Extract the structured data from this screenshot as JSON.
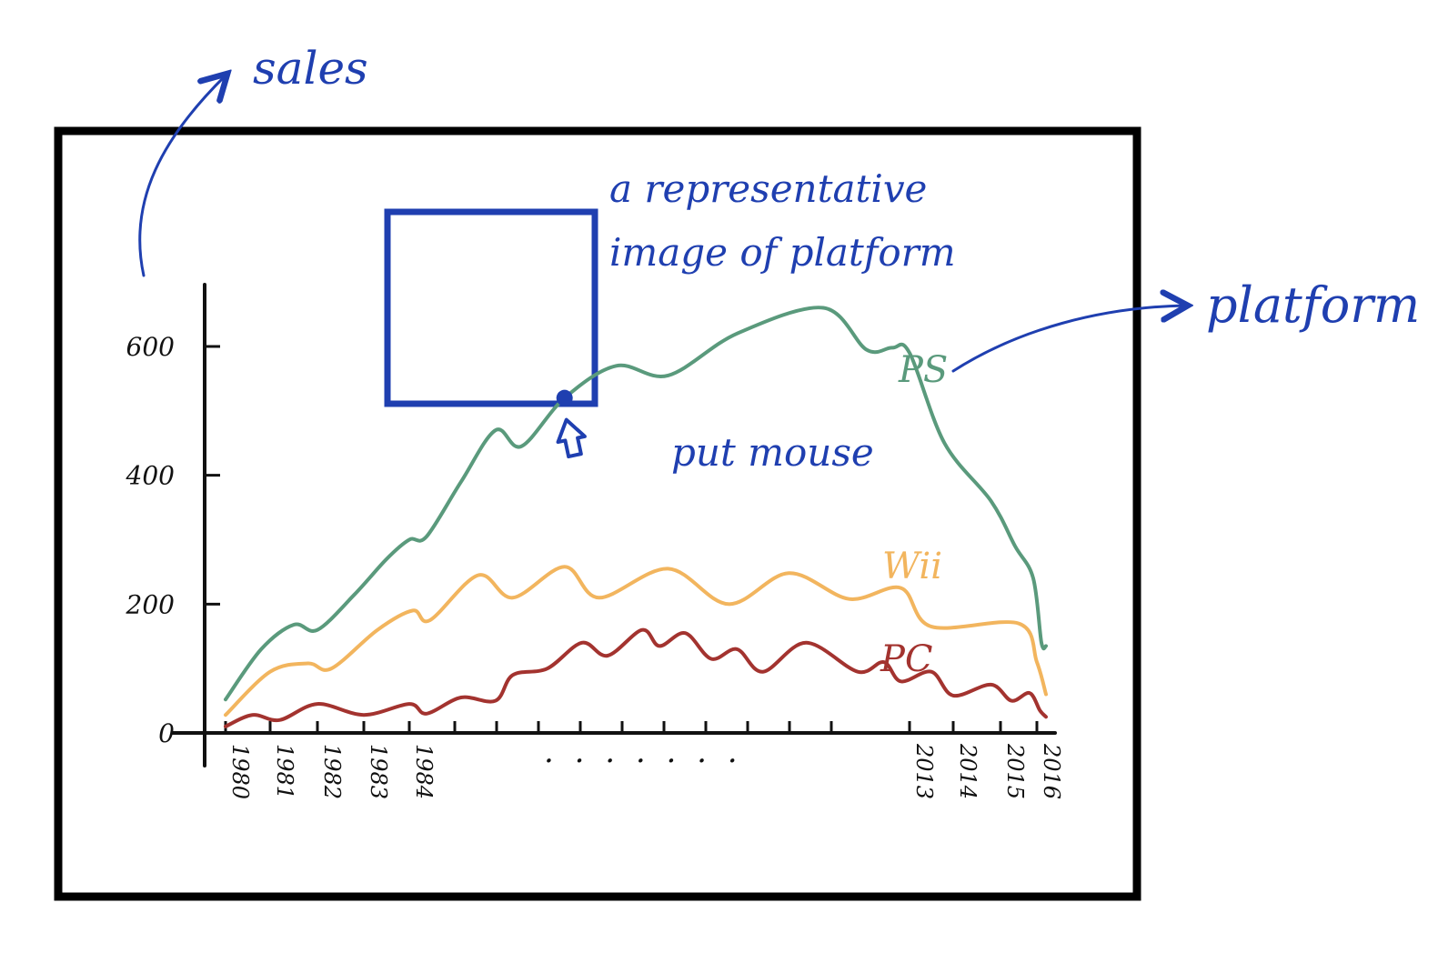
{
  "annotations": {
    "sales": "sales",
    "platform": "platform",
    "image_note_line1": "a representative",
    "image_note_line2": "image of platform",
    "hover_hint": "put mouse",
    "ellipsis": ". . . . . . ."
  },
  "colors": {
    "annotation": "#1f3fb0",
    "axis": "#111111",
    "frame": "#000000"
  },
  "chart_data": {
    "type": "line",
    "y_ticks": [
      0,
      200,
      400,
      600
    ],
    "ylim": [
      0,
      700
    ],
    "x_ticks": [
      {
        "label": "1980",
        "x": 1980
      },
      {
        "label": "1981",
        "x": 1981
      },
      {
        "label": "1982",
        "x": 1982
      },
      {
        "label": "1983",
        "x": 1983
      },
      {
        "label": "1984",
        "x": 1984
      },
      {
        "label": "2013",
        "x": 2013
      },
      {
        "label": "2014",
        "x": 2014
      },
      {
        "label": "2015",
        "x": 2015
      },
      {
        "label": "2016",
        "x": 2016
      }
    ],
    "series": [
      {
        "name": "PS",
        "color": "#5a9a7c",
        "points": [
          {
            "x": 1980.0,
            "y": 52
          },
          {
            "x": 1980.8,
            "y": 130
          },
          {
            "x": 1981.5,
            "y": 168
          },
          {
            "x": 1982.0,
            "y": 160
          },
          {
            "x": 1982.8,
            "y": 215
          },
          {
            "x": 1983.5,
            "y": 270
          },
          {
            "x": 1984.0,
            "y": 300
          },
          {
            "x": 1985.0,
            "y": 305
          },
          {
            "x": 1987.0,
            "y": 390
          },
          {
            "x": 1989.0,
            "y": 470
          },
          {
            "x": 1990.5,
            "y": 445
          },
          {
            "x": 1993.0,
            "y": 520
          },
          {
            "x": 1996.0,
            "y": 570
          },
          {
            "x": 1999.0,
            "y": 555
          },
          {
            "x": 2003.0,
            "y": 620
          },
          {
            "x": 2008.0,
            "y": 660
          },
          {
            "x": 2010.5,
            "y": 595
          },
          {
            "x": 2012.0,
            "y": 598
          },
          {
            "x": 2013.0,
            "y": 590
          },
          {
            "x": 2013.8,
            "y": 450
          },
          {
            "x": 2014.8,
            "y": 360
          },
          {
            "x": 2015.4,
            "y": 290
          },
          {
            "x": 2015.9,
            "y": 240
          },
          {
            "x": 2016.3,
            "y": 140
          },
          {
            "x": 2016.6,
            "y": 135
          }
        ]
      },
      {
        "name": "Wii",
        "color": "#f2b55e",
        "points": [
          {
            "x": 1980.0,
            "y": 28
          },
          {
            "x": 1981.0,
            "y": 95
          },
          {
            "x": 1981.8,
            "y": 108
          },
          {
            "x": 1982.3,
            "y": 100
          },
          {
            "x": 1983.3,
            "y": 160
          },
          {
            "x": 1984.2,
            "y": 190
          },
          {
            "x": 1985.2,
            "y": 175
          },
          {
            "x": 1988.0,
            "y": 245
          },
          {
            "x": 1990.0,
            "y": 210
          },
          {
            "x": 1993.0,
            "y": 258
          },
          {
            "x": 1995.0,
            "y": 210
          },
          {
            "x": 1999.0,
            "y": 255
          },
          {
            "x": 2002.5,
            "y": 200
          },
          {
            "x": 2006.0,
            "y": 248
          },
          {
            "x": 2009.5,
            "y": 208
          },
          {
            "x": 2012.5,
            "y": 225
          },
          {
            "x": 2013.5,
            "y": 165
          },
          {
            "x": 2015.5,
            "y": 170
          },
          {
            "x": 2016.0,
            "y": 110
          },
          {
            "x": 2016.6,
            "y": 60
          }
        ]
      },
      {
        "name": "PC",
        "color": "#a3332f",
        "points": [
          {
            "x": 1980.0,
            "y": 10
          },
          {
            "x": 1980.6,
            "y": 28
          },
          {
            "x": 1981.2,
            "y": 20
          },
          {
            "x": 1982.0,
            "y": 45
          },
          {
            "x": 1983.0,
            "y": 28
          },
          {
            "x": 1984.0,
            "y": 45
          },
          {
            "x": 1985.0,
            "y": 30
          },
          {
            "x": 1987.0,
            "y": 55
          },
          {
            "x": 1989.0,
            "y": 50
          },
          {
            "x": 1990.0,
            "y": 90
          },
          {
            "x": 1992.0,
            "y": 100
          },
          {
            "x": 1994.0,
            "y": 140
          },
          {
            "x": 1995.5,
            "y": 120
          },
          {
            "x": 1997.5,
            "y": 160
          },
          {
            "x": 1998.5,
            "y": 135
          },
          {
            "x": 2000.0,
            "y": 155
          },
          {
            "x": 2001.5,
            "y": 115
          },
          {
            "x": 2003.0,
            "y": 130
          },
          {
            "x": 2004.5,
            "y": 95
          },
          {
            "x": 2007.0,
            "y": 140
          },
          {
            "x": 2010.0,
            "y": 95
          },
          {
            "x": 2011.5,
            "y": 110
          },
          {
            "x": 2012.5,
            "y": 80
          },
          {
            "x": 2013.5,
            "y": 95
          },
          {
            "x": 2014.0,
            "y": 58
          },
          {
            "x": 2014.8,
            "y": 75
          },
          {
            "x": 2015.3,
            "y": 50
          },
          {
            "x": 2015.8,
            "y": 62
          },
          {
            "x": 2016.2,
            "y": 35
          },
          {
            "x": 2016.6,
            "y": 25
          }
        ]
      }
    ],
    "hover_point": {
      "series": "PS",
      "x": 1993.0,
      "y": 520
    }
  }
}
